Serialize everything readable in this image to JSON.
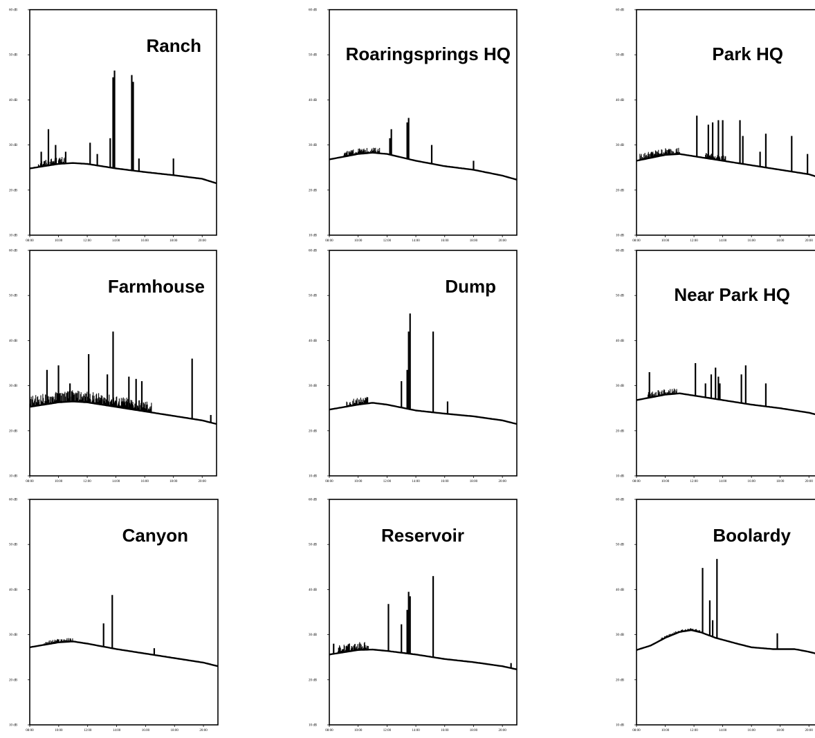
{
  "chart_data": [
    {
      "type": "line",
      "title": "Ranch",
      "ylim": [
        10,
        60
      ],
      "xlim": [
        80,
        210
      ],
      "yticks": [
        "60 dB",
        "50 dB",
        "40 dB",
        "30 dB",
        "20 dB",
        "10 dB"
      ],
      "xticks": [
        "08:00",
        "10:00",
        "12:00",
        "14:00",
        "16:00",
        "18:00",
        "20:00"
      ],
      "baseline": [
        [
          80,
          24.8
        ],
        [
          100,
          25.8
        ],
        [
          110,
          26.0
        ],
        [
          120,
          25.8
        ],
        [
          140,
          24.8
        ],
        [
          160,
          24.0
        ],
        [
          180,
          23.3
        ],
        [
          200,
          22.5
        ],
        [
          210,
          21.5
        ]
      ],
      "noise": [
        {
          "from": 86,
          "to": 105,
          "amplitude": 1.5
        }
      ],
      "spikes": [
        [
          93,
          33.5
        ],
        [
          88,
          28.5
        ],
        [
          98,
          30.0
        ],
        [
          105,
          28.5
        ],
        [
          122,
          30.5
        ],
        [
          127,
          28.0
        ],
        [
          136,
          31.5
        ],
        [
          138,
          45.0
        ],
        [
          139,
          46.5
        ],
        [
          151,
          45.5
        ],
        [
          152,
          44.0
        ],
        [
          156,
          27.0
        ],
        [
          180,
          27.0
        ]
      ]
    },
    {
      "type": "line",
      "title": "Roaringsprings HQ",
      "ylim": [
        10,
        60
      ],
      "xlim": [
        80,
        210
      ],
      "yticks": [
        "60 dB",
        "50 dB",
        "40 dB",
        "30 dB",
        "20 dB",
        "10 dB"
      ],
      "xticks": [
        "08:00",
        "10:00",
        "12:00",
        "14:00",
        "16:00",
        "18:00",
        "20:00"
      ],
      "baseline": [
        [
          80,
          26.8
        ],
        [
          100,
          28.0
        ],
        [
          110,
          28.3
        ],
        [
          120,
          28.0
        ],
        [
          140,
          26.5
        ],
        [
          160,
          25.3
        ],
        [
          180,
          24.5
        ],
        [
          200,
          23.2
        ],
        [
          210,
          22.3
        ]
      ],
      "noise": [
        {
          "from": 90,
          "to": 115,
          "amplitude": 1.2
        }
      ],
      "spikes": [
        [
          122,
          31.5
        ],
        [
          123,
          33.5
        ],
        [
          134,
          35.0
        ],
        [
          135,
          36.0
        ],
        [
          151,
          30.0
        ],
        [
          180,
          26.5
        ]
      ]
    },
    {
      "type": "line",
      "title": "Park HQ",
      "ylim": [
        10,
        60
      ],
      "xlim": [
        80,
        210
      ],
      "yticks": [
        "60 dB",
        "50 dB",
        "40 dB",
        "30 dB",
        "20 dB",
        "10 dB"
      ],
      "xticks": [
        "08:00",
        "10:00",
        "12:00",
        "14:00",
        "16:00",
        "18:00",
        "20:00"
      ],
      "baseline": [
        [
          80,
          26.5
        ],
        [
          100,
          27.8
        ],
        [
          110,
          28.0
        ],
        [
          120,
          27.5
        ],
        [
          140,
          26.5
        ],
        [
          160,
          25.5
        ],
        [
          180,
          24.5
        ],
        [
          200,
          23.5
        ],
        [
          210,
          22.5
        ]
      ],
      "noise": [
        {
          "from": 82,
          "to": 110,
          "amplitude": 1.5
        },
        {
          "from": 128,
          "to": 142,
          "amplitude": 1.2
        }
      ],
      "spikes": [
        [
          122,
          36.5
        ],
        [
          130,
          34.5
        ],
        [
          133,
          35.0
        ],
        [
          137,
          35.5
        ],
        [
          140,
          35.5
        ],
        [
          152,
          35.5
        ],
        [
          154,
          32.0
        ],
        [
          166,
          28.5
        ],
        [
          170,
          32.5
        ],
        [
          188,
          32.0
        ],
        [
          199,
          28.0
        ],
        [
          205,
          31.5
        ]
      ]
    },
    {
      "type": "line",
      "title": "Farmhouse",
      "ylim": [
        10,
        60
      ],
      "xlim": [
        80,
        210
      ],
      "yticks": [
        "60 dB",
        "50 dB",
        "40 dB",
        "30 dB",
        "20 dB",
        "10 dB"
      ],
      "xticks": [
        "08:00",
        "10:00",
        "12:00",
        "14:00",
        "16:00",
        "18:00",
        "20:00"
      ],
      "baseline": [
        [
          80,
          25.3
        ],
        [
          100,
          26.3
        ],
        [
          110,
          26.5
        ],
        [
          120,
          26.3
        ],
        [
          140,
          25.3
        ],
        [
          160,
          24.3
        ],
        [
          180,
          23.3
        ],
        [
          200,
          22.3
        ],
        [
          210,
          21.5
        ]
      ],
      "noise": [
        {
          "from": 80,
          "to": 165,
          "amplitude": 2.5
        }
      ],
      "spikes": [
        [
          92,
          33.5
        ],
        [
          100,
          34.5
        ],
        [
          108,
          30.5
        ],
        [
          121,
          37.0
        ],
        [
          134,
          32.5
        ],
        [
          138,
          42.0
        ],
        [
          149,
          32.0
        ],
        [
          154,
          31.5
        ],
        [
          158,
          31.0
        ],
        [
          193,
          36.0
        ],
        [
          206,
          23.5
        ]
      ]
    },
    {
      "type": "line",
      "title": "Dump",
      "ylim": [
        10,
        60
      ],
      "xlim": [
        80,
        210
      ],
      "yticks": [
        "60 dB",
        "50 dB",
        "40 dB",
        "30 dB",
        "20 dB",
        "10 dB"
      ],
      "xticks": [
        "08:00",
        "10:00",
        "12:00",
        "14:00",
        "16:00",
        "18:00",
        "20:00"
      ],
      "baseline": [
        [
          80,
          24.7
        ],
        [
          100,
          25.8
        ],
        [
          110,
          26.2
        ],
        [
          120,
          25.8
        ],
        [
          140,
          24.5
        ],
        [
          160,
          23.8
        ],
        [
          180,
          23.2
        ],
        [
          200,
          22.3
        ],
        [
          210,
          21.5
        ]
      ],
      "noise": [
        {
          "from": 92,
          "to": 107,
          "amplitude": 1.5
        }
      ],
      "spikes": [
        [
          130,
          31.0
        ],
        [
          134,
          33.5
        ],
        [
          135,
          42.0
        ],
        [
          136,
          46.0
        ],
        [
          152,
          42.0
        ],
        [
          162,
          26.5
        ]
      ]
    },
    {
      "type": "line",
      "title": "Near Park HQ",
      "ylim": [
        10,
        60
      ],
      "xlim": [
        80,
        210
      ],
      "yticks": [
        "60 dB",
        "50 dB",
        "40 dB",
        "30 dB",
        "20 dB",
        "10 dB"
      ],
      "xticks": [
        "08:00",
        "10:00",
        "12:00",
        "14:00",
        "16:00",
        "18:00",
        "20:00"
      ],
      "baseline": [
        [
          80,
          26.8
        ],
        [
          100,
          28.0
        ],
        [
          110,
          28.3
        ],
        [
          120,
          27.8
        ],
        [
          140,
          26.8
        ],
        [
          160,
          25.8
        ],
        [
          180,
          25.0
        ],
        [
          200,
          24.0
        ],
        [
          210,
          23.2
        ]
      ],
      "noise": [
        {
          "from": 88,
          "to": 108,
          "amplitude": 1.3
        }
      ],
      "spikes": [
        [
          89,
          33.0
        ],
        [
          121,
          35.0
        ],
        [
          128,
          30.5
        ],
        [
          132,
          32.5
        ],
        [
          135,
          34.0
        ],
        [
          137,
          32.0
        ],
        [
          138,
          30.5
        ],
        [
          153,
          32.5
        ],
        [
          156,
          34.5
        ],
        [
          170,
          30.5
        ]
      ]
    },
    {
      "type": "line",
      "title": "Canyon",
      "ylim": [
        10,
        60
      ],
      "xlim": [
        80,
        210
      ],
      "yticks": [
        "60 dB",
        "50 dB",
        "40 dB",
        "30 dB",
        "20 dB",
        "10 dB"
      ],
      "xticks": [
        "08:00",
        "10:00",
        "12:00",
        "14:00",
        "16:00",
        "18:00",
        "20:00"
      ],
      "baseline": [
        [
          80,
          27.2
        ],
        [
          100,
          28.3
        ],
        [
          110,
          28.5
        ],
        [
          120,
          28.0
        ],
        [
          140,
          26.8
        ],
        [
          160,
          25.8
        ],
        [
          180,
          24.8
        ],
        [
          200,
          23.8
        ],
        [
          210,
          23.0
        ]
      ],
      "noise": [
        {
          "from": 90,
          "to": 110,
          "amplitude": 0.8
        }
      ],
      "spikes": [
        [
          131,
          32.5
        ],
        [
          137,
          38.8
        ],
        [
          166,
          27.0
        ]
      ]
    },
    {
      "type": "line",
      "title": "Reservoir",
      "ylim": [
        10,
        60
      ],
      "xlim": [
        80,
        210
      ],
      "yticks": [
        "60 dB",
        "50 dB",
        "40 dB",
        "30 dB",
        "20 dB",
        "10 dB"
      ],
      "xticks": [
        "08:00",
        "10:00",
        "12:00",
        "14:00",
        "16:00",
        "18:00",
        "20:00"
      ],
      "baseline": [
        [
          80,
          25.6
        ],
        [
          100,
          26.6
        ],
        [
          110,
          26.7
        ],
        [
          120,
          26.4
        ],
        [
          140,
          25.6
        ],
        [
          160,
          24.6
        ],
        [
          180,
          23.9
        ],
        [
          200,
          23.0
        ],
        [
          210,
          22.3
        ]
      ],
      "noise": [
        {
          "from": 86,
          "to": 107,
          "amplitude": 1.8
        }
      ],
      "spikes": [
        [
          83,
          28.0
        ],
        [
          121,
          36.8
        ],
        [
          130,
          32.3
        ],
        [
          134,
          35.5
        ],
        [
          135,
          39.5
        ],
        [
          136,
          38.5
        ],
        [
          152,
          43.0
        ],
        [
          206,
          23.7
        ]
      ]
    },
    {
      "type": "line",
      "title": "Boolardy",
      "ylim": [
        10,
        60
      ],
      "xlim": [
        80,
        210
      ],
      "yticks": [
        "60 dB",
        "50 dB",
        "40 dB",
        "30 dB",
        "20 dB",
        "10 dB"
      ],
      "xticks": [
        "08:00",
        "10:00",
        "12:00",
        "14:00",
        "16:00",
        "18:00",
        "20:00"
      ],
      "baseline": [
        [
          80,
          26.6
        ],
        [
          90,
          27.6
        ],
        [
          100,
          29.3
        ],
        [
          110,
          30.6
        ],
        [
          118,
          31.0
        ],
        [
          125,
          30.5
        ],
        [
          135,
          29.3
        ],
        [
          150,
          28.0
        ],
        [
          160,
          27.2
        ],
        [
          175,
          26.8
        ],
        [
          190,
          26.8
        ],
        [
          200,
          26.2
        ],
        [
          210,
          25.4
        ]
      ],
      "noise": [
        {
          "from": 96,
          "to": 124,
          "amplitude": 0.5
        }
      ],
      "spikes": [
        [
          126,
          44.8
        ],
        [
          131,
          37.6
        ],
        [
          133,
          33.2
        ],
        [
          136,
          46.8
        ],
        [
          178,
          30.3
        ]
      ]
    }
  ]
}
